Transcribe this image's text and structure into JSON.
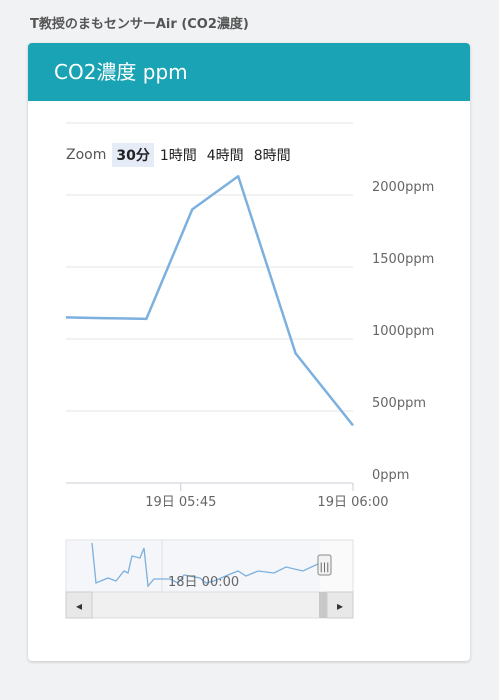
{
  "page": {
    "heading": "T教授のまもセンサーAir (CO2濃度)"
  },
  "card": {
    "title": "CO2濃度 ppm"
  },
  "zoom": {
    "label": "Zoom",
    "buttons": [
      {
        "label": "30分",
        "active": true
      },
      {
        "label": "1時間",
        "active": false
      },
      {
        "label": "4時間",
        "active": false
      },
      {
        "label": "8時間",
        "active": false
      }
    ]
  },
  "chart_data": {
    "type": "line",
    "series": [
      {
        "x": [
          "05:35",
          "05:38",
          "05:42",
          "05:46",
          "05:50",
          "05:55",
          "06:00"
        ],
        "values": [
          1150,
          1145,
          1140,
          1900,
          2130,
          900,
          400
        ]
      }
    ],
    "x_range": [
      "05:35",
      "06:00"
    ],
    "ylim": [
      0,
      2500
    ],
    "y_ticks": [
      "0ppm",
      "500ppm",
      "1000ppm",
      "1500ppm",
      "2000ppm"
    ],
    "x_ticks": [
      "19日 05:45",
      "19日 06:00"
    ],
    "line_color": "#7cb0df",
    "grid": true
  },
  "navigator": {
    "label": "18日 00:00",
    "scroll_left_icon": "◂",
    "scroll_right_icon": "▸",
    "handle_icon": "|||"
  }
}
